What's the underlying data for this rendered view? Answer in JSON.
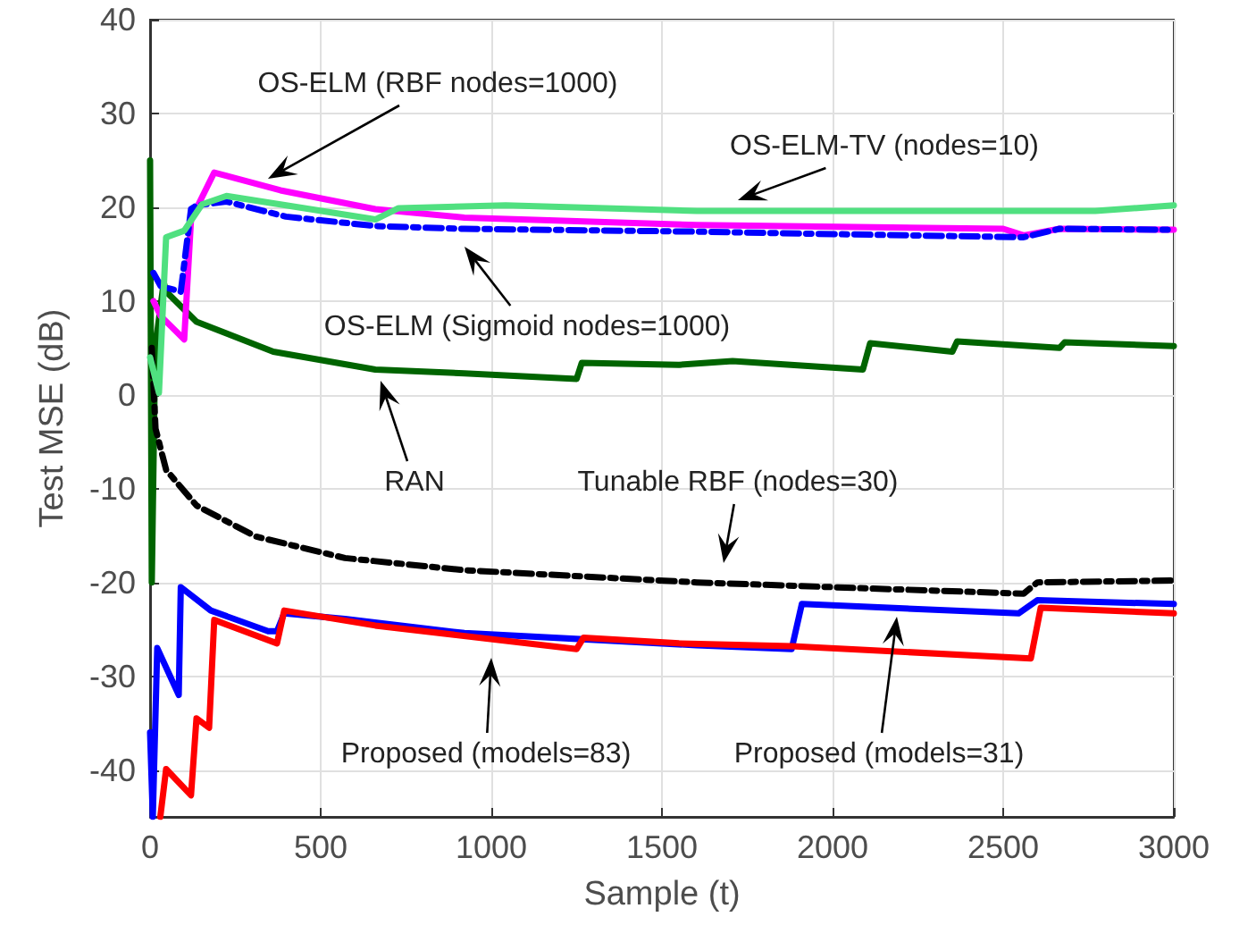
{
  "chart_data": {
    "type": "line",
    "xlabel": "Sample (t)",
    "ylabel": "Test MSE (dB)",
    "xlim": [
      0,
      3000
    ],
    "xticks": [
      0,
      500,
      1000,
      1500,
      2000,
      2500,
      3000
    ],
    "ylim": [
      -45,
      40
    ],
    "yticks": [
      -40,
      -30,
      -20,
      -10,
      0,
      10,
      20,
      30,
      40
    ],
    "grid": true,
    "marker": "none",
    "series": [
      {
        "color": "#006400",
        "line_style": "solid",
        "x": [
          0,
          5,
          15,
          40,
          47,
          136,
          361,
          660,
          921,
          1250,
          1265,
          1550,
          1707,
          2089,
          2110,
          2351,
          2365,
          2665,
          2680,
          3000
        ],
        "values": [
          25,
          -20,
          5,
          12,
          11,
          7.8,
          4.6,
          2.7,
          2.3,
          1.7,
          3.4,
          3.2,
          3.6,
          2.7,
          5.5,
          4.6,
          5.7,
          5.0,
          5.6,
          5.2
        ]
      },
      {
        "color": "#000000",
        "line_style": "dashed",
        "x": [
          5,
          16,
          47,
          136,
          309,
          571,
          921,
          1602,
          2073,
          2560,
          2600,
          3000
        ],
        "values": [
          5,
          -3.6,
          -8,
          -11.8,
          -15.1,
          -17.4,
          -18.7,
          -20,
          -20.6,
          -21.2,
          -20,
          -19.8
        ]
      },
      {
        "color": "#ff00ff",
        "line_style": "solid",
        "x": [
          10,
          31,
          100,
          120,
          188,
          382,
          660,
          921,
          1602,
          2500,
          2560,
          2665,
          3000
        ],
        "values": [
          10,
          8.4,
          5.9,
          18.7,
          23.7,
          21.8,
          19.8,
          18.9,
          18.1,
          17.7,
          17.0,
          17.7,
          17.6
        ]
      },
      {
        "color": "#0000ff",
        "line_style": "dashed",
        "x": [
          10,
          31,
          90,
          120,
          136,
          224,
          398,
          660,
          921,
          1602,
          1900,
          2560,
          2665,
          3000
        ],
        "values": [
          13,
          11.6,
          11,
          19.8,
          20.2,
          20.6,
          19,
          18,
          17.7,
          17.4,
          17.2,
          16.8,
          17.7,
          17.6
        ]
      },
      {
        "color": "#50e080",
        "line_style": "solid",
        "x": [
          0,
          26,
          47,
          100,
          152,
          224,
          382,
          660,
          728,
          1042,
          1602,
          2005,
          2770,
          3000
        ],
        "values": [
          4,
          0.2,
          16.8,
          17.5,
          20.3,
          21.2,
          20.3,
          18.7,
          19.9,
          20.2,
          19.6,
          19.6,
          19.6,
          20.2
        ]
      },
      {
        "color": "#0000ff",
        "line_style": "solid",
        "x": [
          0,
          8,
          21,
          84,
          90,
          178,
          346,
          372,
          393,
          571,
          921,
          1602,
          1880,
          1910,
          2545,
          2600,
          3000
        ],
        "values": [
          -36,
          -45,
          -27,
          -32,
          -20.5,
          -23,
          -25.2,
          -25.2,
          -23.3,
          -23.9,
          -25.4,
          -26.7,
          -27.1,
          -22.3,
          -23.3,
          -21.9,
          -22.3
        ]
      },
      {
        "color": "#ff0000",
        "line_style": "solid",
        "x": [
          30,
          47,
          120,
          136,
          173,
          188,
          372,
          393,
          660,
          1250,
          1270,
          1550,
          1880,
          2581,
          2610,
          3000
        ],
        "values": [
          -45,
          -39.9,
          -42.7,
          -34.5,
          -35.5,
          -24,
          -26.5,
          -23,
          -24.6,
          -27.1,
          -25.9,
          -26.5,
          -26.8,
          -28.1,
          -22.7,
          -23.3
        ]
      }
    ],
    "annotations": [
      "OS-ELM (RBF nodes=1000)",
      "OS-ELM-TV (nodes=10)",
      "OS-ELM (Sigmoid nodes=1000)",
      "RAN",
      "Tunable RBF (nodes=30)",
      "Proposed (models=83)",
      "Proposed (models=31)"
    ]
  }
}
